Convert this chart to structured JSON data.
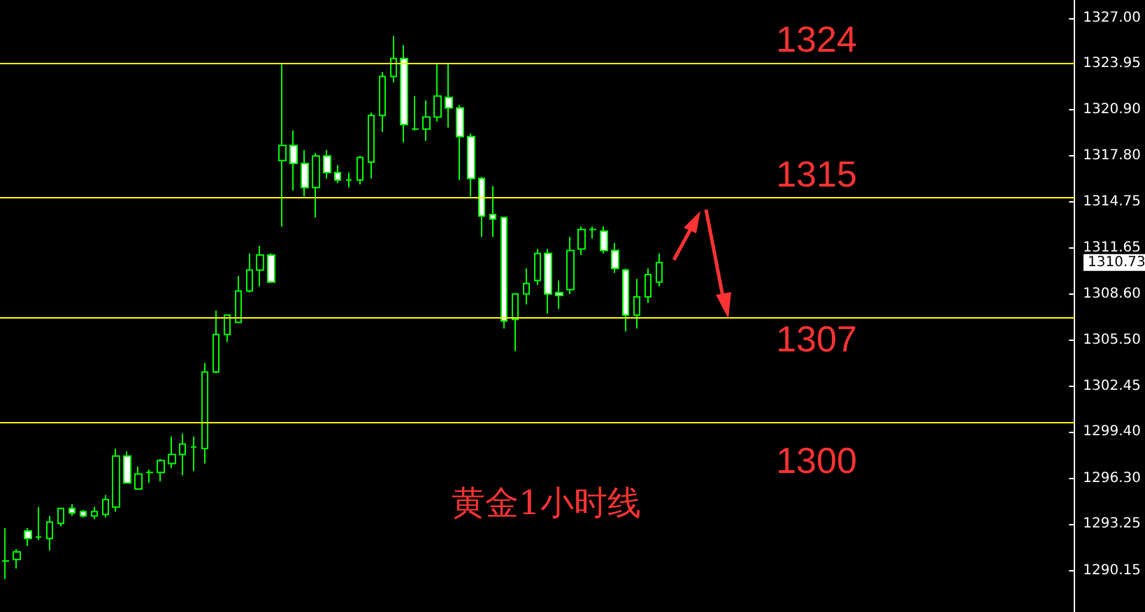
{
  "chart_data": {
    "type": "candlestick",
    "title": "黄金1小时线",
    "categories": [
      null,
      null,
      null,
      null,
      null,
      null,
      null,
      null,
      null,
      null,
      null,
      null,
      null,
      null,
      null,
      null,
      null,
      null,
      null,
      null,
      null,
      null,
      null,
      null,
      null,
      null,
      null,
      null,
      null,
      null,
      null,
      null,
      null,
      null,
      null,
      null,
      null,
      null,
      null,
      null,
      null,
      null,
      null,
      null,
      null,
      null,
      null,
      null,
      null,
      null,
      null,
      null,
      null,
      null,
      null,
      null,
      null,
      null,
      null,
      null,
      null,
      null,
      null,
      null,
      null,
      null,
      null,
      null,
      null,
      null,
      null,
      null,
      null,
      null,
      null,
      null,
      null,
      null,
      null,
      null,
      null,
      null,
      null,
      null,
      null,
      null,
      null,
      null,
      null,
      null,
      null,
      null,
      null,
      null,
      null,
      null,
      null
    ],
    "color": "#00ff00",
    "ohlc": [
      [
        1290.8,
        1293.0,
        1289.6,
        1290.8
      ],
      [
        1290.9,
        1291.6,
        1290.3,
        1291.4
      ],
      [
        1292.8,
        1293.0,
        1291.8,
        1292.3
      ],
      [
        1292.4,
        1294.4,
        1292.2,
        1292.4
      ],
      [
        1292.3,
        1293.8,
        1291.5,
        1293.4
      ],
      [
        1293.3,
        1294.3,
        1293.1,
        1294.3
      ],
      [
        1294.3,
        1294.6,
        1293.8,
        1294.0
      ],
      [
        1294.1,
        1294.2,
        1293.7,
        1293.8
      ],
      [
        1293.8,
        1294.4,
        1293.6,
        1294.1
      ],
      [
        1293.9,
        1295.2,
        1293.7,
        1294.9
      ],
      [
        1294.4,
        1298.3,
        1294.1,
        1297.8
      ],
      [
        1297.8,
        1298.1,
        1296.0,
        1296.0
      ],
      [
        1295.6,
        1297.1,
        1295.6,
        1296.6
      ],
      [
        1296.7,
        1296.9,
        1296.0,
        1296.7
      ],
      [
        1296.7,
        1297.6,
        1296.1,
        1297.5
      ],
      [
        1297.3,
        1299.1,
        1297.0,
        1297.9
      ],
      [
        1297.9,
        1299.3,
        1296.5,
        1298.6
      ],
      [
        1298.4,
        1299.1,
        1296.8,
        1298.4
      ],
      [
        1298.3,
        1304.0,
        1297.3,
        1303.4
      ],
      [
        1303.4,
        1307.5,
        1303.3,
        1305.9
      ],
      [
        1305.9,
        1307.2,
        1305.4,
        1307.2
      ],
      [
        1306.7,
        1309.8,
        1306.7,
        1308.8
      ],
      [
        1308.8,
        1311.3,
        1308.7,
        1310.2
      ],
      [
        1310.2,
        1311.8,
        1309.1,
        1311.2
      ],
      [
        1311.2,
        1311.3,
        1309.4,
        1309.4
      ],
      [
        1317.5,
        1323.9,
        1313.1,
        1318.5
      ],
      [
        1318.5,
        1319.5,
        1315.5,
        1317.3
      ],
      [
        1317.3,
        1318.2,
        1315.1,
        1315.7
      ],
      [
        1315.7,
        1318.0,
        1313.7,
        1317.8
      ],
      [
        1317.8,
        1318.2,
        1316.3,
        1316.7
      ],
      [
        1316.7,
        1317.2,
        1316.0,
        1316.2
      ],
      [
        1316.2,
        1316.7,
        1315.7,
        1316.2
      ],
      [
        1316.2,
        1317.8,
        1315.9,
        1317.7
      ],
      [
        1317.4,
        1320.7,
        1316.3,
        1320.5
      ],
      [
        1320.5,
        1323.4,
        1319.4,
        1323.1
      ],
      [
        1323.1,
        1325.8,
        1322.7,
        1324.3
      ],
      [
        1324.3,
        1325.2,
        1318.7,
        1319.9
      ],
      [
        1319.6,
        1321.8,
        1319.5,
        1319.6
      ],
      [
        1319.6,
        1321.5,
        1318.8,
        1320.4
      ],
      [
        1320.4,
        1323.9,
        1320.1,
        1321.8
      ],
      [
        1321.7,
        1323.9,
        1319.7,
        1321.0
      ],
      [
        1321.0,
        1321.2,
        1316.2,
        1319.1
      ],
      [
        1319.1,
        1319.3,
        1315.1,
        1316.3
      ],
      [
        1316.3,
        1316.4,
        1312.4,
        1313.8
      ],
      [
        1313.9,
        1315.8,
        1312.4,
        1313.6
      ],
      [
        1313.7,
        1313.7,
        1306.3,
        1306.8
      ],
      [
        1306.9,
        1308.6,
        1304.8,
        1308.6
      ],
      [
        1308.6,
        1310.3,
        1307.9,
        1309.3
      ],
      [
        1309.5,
        1311.6,
        1309.2,
        1311.3
      ],
      [
        1311.3,
        1311.6,
        1307.3,
        1308.6
      ],
      [
        1308.7,
        1309.5,
        1307.6,
        1308.5
      ],
      [
        1308.9,
        1312.4,
        1308.6,
        1311.5
      ],
      [
        1311.6,
        1313.1,
        1311.2,
        1312.9
      ],
      [
        1312.9,
        1313.1,
        1312.3,
        1312.9
      ],
      [
        1312.8,
        1313.1,
        1311.3,
        1311.5
      ],
      [
        1311.5,
        1312.0,
        1310.0,
        1310.3
      ],
      [
        1310.2,
        1310.3,
        1306.1,
        1307.2
      ],
      [
        1307.2,
        1309.6,
        1306.3,
        1308.4
      ],
      [
        1308.4,
        1310.3,
        1308.0,
        1309.9
      ],
      [
        1309.4,
        1311.3,
        1309.1,
        1310.7
      ],
      null,
      null,
      null,
      null,
      null,
      null,
      null,
      null,
      null,
      null,
      null,
      null,
      null,
      null,
      null,
      null,
      null,
      null,
      null,
      null,
      null,
      null,
      null,
      null,
      null,
      null,
      null,
      null,
      null,
      null,
      null,
      null,
      null,
      null,
      null,
      null,
      null
    ],
    "ylim": [
      1287.4,
      1328.2
    ],
    "yticks": [
      {
        "value": 1290.15,
        "label": "1290.15"
      },
      {
        "value": 1293.25,
        "label": "1293.25"
      },
      {
        "value": 1296.3,
        "label": "1296.30"
      },
      {
        "value": 1299.4,
        "label": "1299.40"
      },
      {
        "value": 1302.45,
        "label": "1302.45"
      },
      {
        "value": 1305.5,
        "label": "1305.50"
      },
      {
        "value": 1308.6,
        "label": "1308.60"
      },
      {
        "value": 1311.65,
        "label": "1311.65"
      },
      {
        "value": 1314.75,
        "label": "1314.75"
      },
      {
        "value": 1317.8,
        "label": "1317.80"
      },
      {
        "value": 1320.9,
        "label": "1320.90"
      },
      {
        "value": 1323.95,
        "label": "1323.95"
      },
      {
        "value": 1327,
        "label": "1327.00"
      }
    ],
    "ref_lines": [
      {
        "axis": "y",
        "value": 1324,
        "label": "1324",
        "color": "#ffff00"
      },
      {
        "axis": "y",
        "value": 1315,
        "label": "1315",
        "color": "#ffff00"
      },
      {
        "axis": "y",
        "value": 1307,
        "label": "1307",
        "color": "#ffff00"
      },
      {
        "axis": "y",
        "value": 1300,
        "label": "1300",
        "color": "#ffff00"
      }
    ],
    "annotations": [
      "1310.73"
    ],
    "grid": false
  }
}
